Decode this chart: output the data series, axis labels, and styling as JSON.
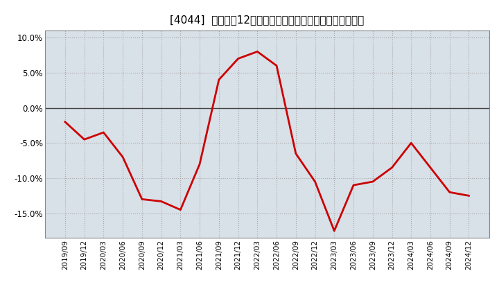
{
  "title": "[4044]  売上高の12か月移動合計の対前年同期増減率の推移",
  "x_labels": [
    "2019/09",
    "2019/12",
    "2020/03",
    "2020/06",
    "2020/09",
    "2020/12",
    "2021/03",
    "2021/06",
    "2021/09",
    "2021/12",
    "2022/03",
    "2022/06",
    "2022/09",
    "2022/12",
    "2023/03",
    "2023/06",
    "2023/09",
    "2023/12",
    "2024/03",
    "2024/06",
    "2024/09",
    "2024/12"
  ],
  "values": [
    -2.0,
    -4.5,
    -3.5,
    -7.0,
    -13.0,
    -13.3,
    -14.5,
    -8.0,
    4.0,
    7.0,
    8.0,
    6.0,
    -6.5,
    -10.5,
    -17.5,
    -11.0,
    -10.5,
    -8.5,
    -5.0,
    -8.5,
    -12.0,
    -12.5
  ],
  "line_color": "#cc0000",
  "line_width": 2.0,
  "ylim": [
    -18.5,
    11.0
  ],
  "yticks": [
    -15.0,
    -10.0,
    -5.0,
    0.0,
    5.0,
    10.0
  ],
  "ytick_labels": [
    "-15.0%",
    "-10.0%",
    "-5.0%",
    "0.0%",
    "5.0%",
    "10.0%"
  ],
  "grid_color": "#aaaaaa",
  "bg_color": "#ffffff",
  "plot_bg_color": "#d8e0e8",
  "title_fontsize": 11,
  "zero_line_color": "#444444"
}
